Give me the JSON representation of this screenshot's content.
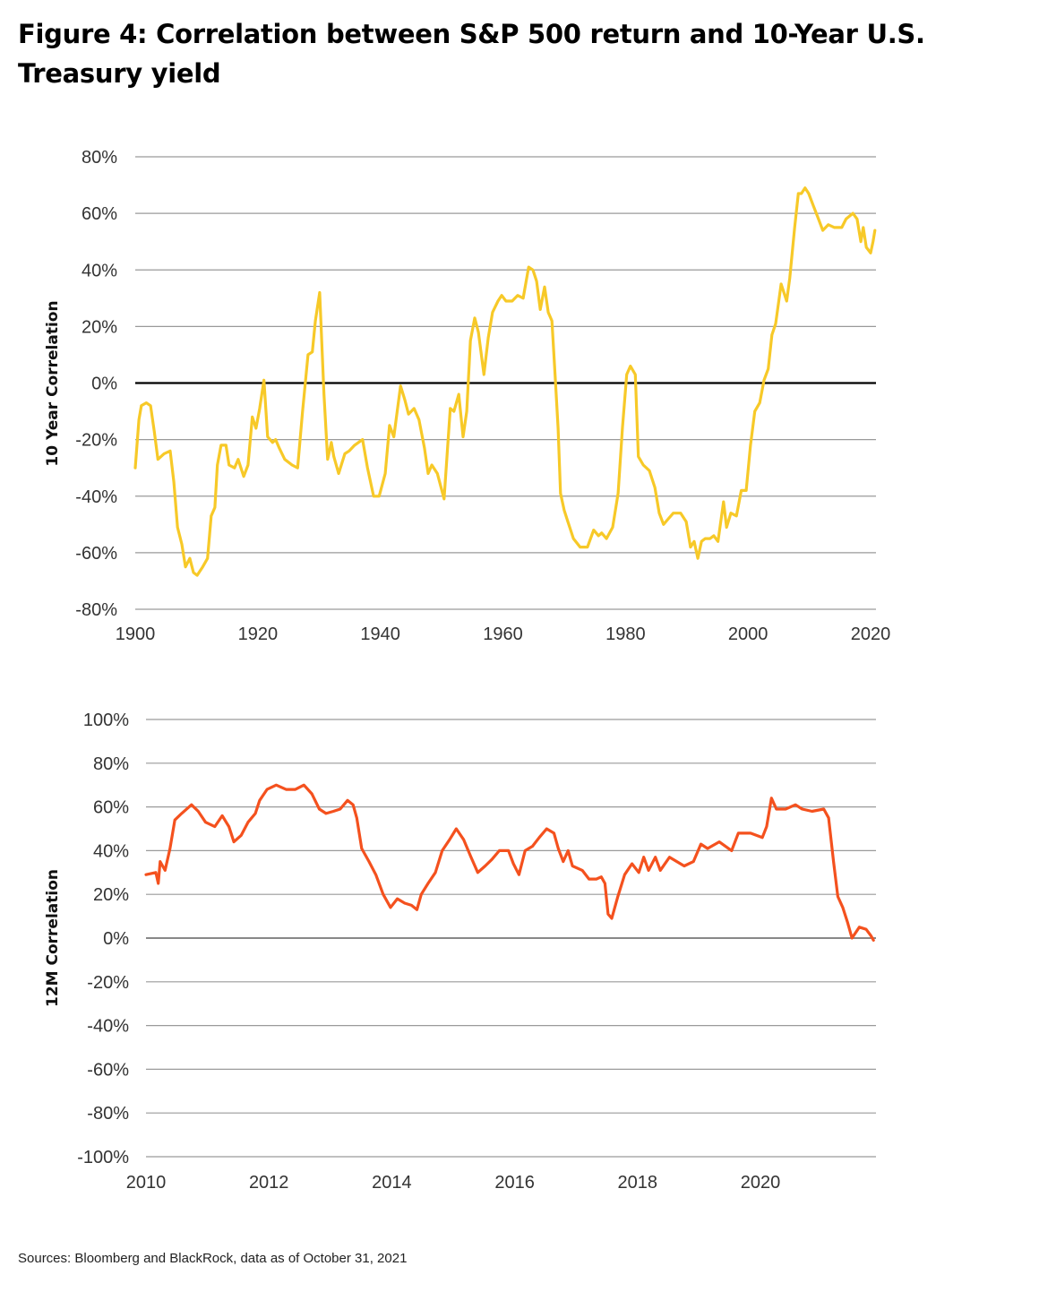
{
  "title": "Figure 4: Correlation between S&P 500 return and 10-Year U.S. Treasury yield",
  "source": "Sources: Bloomberg and BlackRock, data as of October 31, 2021",
  "colors": {
    "top_line": "#F7C928",
    "bottom_line": "#F4511E",
    "grid": "#9a9a9a"
  },
  "chart_data": [
    {
      "type": "line",
      "title": "",
      "xlabel": "",
      "ylabel": "10 Year Correlation",
      "xlim": [
        1900,
        2020
      ],
      "ylim": [
        -80,
        80
      ],
      "x_ticks": [
        1900,
        1920,
        1940,
        1960,
        1980,
        2000,
        2020
      ],
      "x_tick_labels": [
        "1900",
        "1920",
        "1940",
        "1960",
        "1980",
        "2000",
        "2020"
      ],
      "y_ticks": [
        80,
        60,
        40,
        20,
        0,
        -20,
        -40,
        -60,
        -80
      ],
      "y_tick_labels": [
        "80%",
        "60%",
        "40%",
        "20%",
        "0%",
        "-20%",
        "-40%",
        "-60%",
        "-80%"
      ],
      "grid": true,
      "series": [
        {
          "name": "10 Year Correlation",
          "x": [
            1900.0,
            1900.6,
            1901.0,
            1901.8,
            1902.5,
            1903.1,
            1903.7,
            1904.7,
            1905.7,
            1906.3,
            1906.9,
            1907.6,
            1908.2,
            1908.9,
            1909.5,
            1910.1,
            1911.0,
            1911.8,
            1912.4,
            1913.0,
            1913.4,
            1914.0,
            1914.8,
            1915.3,
            1916.2,
            1916.8,
            1917.7,
            1918.4,
            1919.1,
            1919.7,
            1920.3,
            1921.0,
            1921.6,
            1922.4,
            1922.9,
            1923.5,
            1924.4,
            1925.6,
            1926.5,
            1927.3,
            1928.2,
            1928.9,
            1929.4,
            1930.1,
            1930.8,
            1931.4,
            1932.0,
            1932.4,
            1933.2,
            1934.2,
            1934.9,
            1935.8,
            1937.1,
            1937.9,
            1938.9,
            1939.8,
            1940.8,
            1941.5,
            1942.2,
            1943.3,
            1944.0,
            1944.6,
            1945.5,
            1946.3,
            1947.2,
            1947.8,
            1948.4,
            1949.3,
            1950.4,
            1951.4,
            1952.0,
            1952.8,
            1953.5,
            1954.1,
            1954.7,
            1955.4,
            1956.0,
            1956.9,
            1957.6,
            1958.3,
            1959.2,
            1959.8,
            1960.5,
            1961.5,
            1962.4,
            1963.3,
            1964.2,
            1964.9,
            1965.5,
            1966.1,
            1966.8,
            1967.4,
            1968.0,
            1968.5,
            1969.0,
            1969.4,
            1970.0,
            1970.6,
            1971.5,
            1972.6,
            1973.8,
            1974.8,
            1975.6,
            1976.1,
            1976.9,
            1977.9,
            1978.8,
            1979.5,
            1980.2,
            1980.8,
            1981.6,
            1982.1,
            1982.9,
            1983.9,
            1984.8,
            1985.5,
            1986.2,
            1987.0,
            1987.8,
            1989.0,
            1989.9,
            1990.6,
            1991.2,
            1991.8,
            1992.4,
            1993.0,
            1993.8,
            1994.4,
            1995.1,
            1996.0,
            1996.5,
            1997.2,
            1998.1,
            1998.9,
            1999.7,
            2000.4,
            2001.1,
            2001.9,
            2002.6,
            2003.3,
            2003.9,
            2004.5,
            2005.4,
            2006.3,
            2006.8,
            2007.6,
            2008.2,
            2008.7,
            2009.3,
            2009.9,
            2010.6,
            2011.5,
            2012.2,
            2013.1,
            2014.1,
            2015.3,
            2016.0,
            2017.1,
            2017.8,
            2018.4,
            2018.8,
            2019.3,
            2020.0,
            2020.4,
            2020.7
          ],
          "y": [
            -30,
            -13,
            -8,
            -7,
            -8,
            -17,
            -27,
            -25,
            -24,
            -35,
            -51,
            -57,
            -65,
            -62,
            -67,
            -68,
            -65,
            -62,
            -47,
            -44,
            -29,
            -22,
            -22,
            -29,
            -30,
            -27,
            -33,
            -29,
            -12,
            -16,
            -9,
            1,
            -19,
            -21,
            -20,
            -23,
            -27,
            -29,
            -30,
            -10,
            10,
            11,
            22,
            32,
            -4,
            -27,
            -21,
            -26,
            -32,
            -25,
            -24,
            -22,
            -20,
            -30,
            -40,
            -40,
            -32,
            -15,
            -19,
            -1,
            -6,
            -11,
            -9,
            -13,
            -23,
            -32,
            -29,
            -32,
            -41,
            -9,
            -10,
            -4,
            -19,
            -10,
            15,
            23,
            18,
            3,
            16,
            25,
            29,
            31,
            29,
            29,
            31,
            30,
            41,
            40,
            36,
            26,
            34,
            25,
            22,
            3,
            -16,
            -39,
            -45,
            -49,
            -55,
            -58,
            -58,
            -52,
            -54,
            -53,
            -55,
            -51,
            -39,
            -16,
            3,
            6,
            3,
            -26,
            -29,
            -31,
            -37,
            -46,
            -50,
            -48,
            -46,
            -46,
            -49,
            -58,
            -56,
            -62,
            -56,
            -55,
            -55,
            -54,
            -56,
            -42,
            -51,
            -46,
            -47,
            -38,
            -38,
            -22,
            -10,
            -7,
            1,
            5,
            17,
            21,
            35,
            29,
            37,
            55,
            67,
            67,
            69,
            67,
            63,
            58,
            54,
            56,
            55,
            55,
            58,
            60,
            58,
            50,
            55,
            48,
            46,
            50,
            54
          ]
        }
      ]
    },
    {
      "type": "line",
      "title": "",
      "xlabel": "",
      "ylabel": "12M Correlation",
      "xlim": [
        2010,
        2022
      ],
      "ylim": [
        -100,
        100
      ],
      "x_ticks": [
        2010,
        2012,
        2014,
        2016,
        2018,
        2020
      ],
      "x_tick_labels": [
        "2010",
        "2012",
        "2014",
        "2016",
        "2018",
        "2020"
      ],
      "y_ticks": [
        100,
        80,
        60,
        40,
        20,
        0,
        -20,
        -40,
        -60,
        -80,
        -100
      ],
      "y_tick_labels": [
        "100%",
        "80%",
        "60%",
        "40%",
        "20%",
        "0%",
        "-20%",
        "-40%",
        "-60%",
        "-80%",
        "-100%"
      ],
      "grid": true,
      "series": [
        {
          "name": "12M Correlation",
          "x": [
            2010.0,
            2010.16,
            2010.2,
            2010.23,
            2010.31,
            2010.39,
            2010.47,
            2010.58,
            2010.74,
            2010.85,
            2010.97,
            2011.12,
            2011.24,
            2011.35,
            2011.43,
            2011.55,
            2011.66,
            2011.78,
            2011.85,
            2011.97,
            2012.12,
            2012.28,
            2012.43,
            2012.57,
            2012.7,
            2012.82,
            2012.93,
            2013.05,
            2013.16,
            2013.28,
            2013.37,
            2013.43,
            2013.51,
            2013.63,
            2013.74,
            2013.86,
            2013.98,
            2014.09,
            2014.21,
            2014.32,
            2014.41,
            2014.48,
            2014.59,
            2014.71,
            2014.82,
            2014.94,
            2015.05,
            2015.17,
            2015.29,
            2015.4,
            2015.52,
            2015.63,
            2015.75,
            2015.9,
            2015.98,
            2016.07,
            2016.17,
            2016.29,
            2016.4,
            2016.52,
            2016.64,
            2016.71,
            2016.79,
            2016.87,
            2016.94,
            2017.1,
            2017.21,
            2017.33,
            2017.41,
            2017.47,
            2017.52,
            2017.58,
            2017.68,
            2017.79,
            2017.91,
            2018.02,
            2018.1,
            2018.18,
            2018.29,
            2018.37,
            2018.52,
            2018.76,
            2018.91,
            2019.03,
            2019.14,
            2019.33,
            2019.53,
            2019.64,
            2019.84,
            2020.03,
            2020.1,
            2020.18,
            2020.26,
            2020.41,
            2020.57,
            2020.68,
            2020.84,
            2021.03,
            2021.11,
            2021.19,
            2021.26,
            2021.34,
            2021.42,
            2021.49,
            2021.61,
            2021.72,
            2021.8,
            2021.84
          ],
          "y": [
            29,
            30,
            25,
            35,
            31,
            41,
            54,
            57,
            61,
            58,
            53,
            51,
            56,
            51,
            44,
            47,
            53,
            57,
            63,
            68,
            70,
            68,
            68,
            70,
            66,
            59,
            57,
            58,
            59,
            63,
            61,
            55,
            41,
            35,
            29,
            20,
            14,
            18,
            16,
            15,
            13,
            20,
            25,
            30,
            40,
            45,
            50,
            45,
            37,
            30,
            33,
            36,
            40,
            40,
            34,
            29,
            40,
            42,
            46,
            50,
            48,
            41,
            35,
            40,
            33,
            31,
            27,
            27,
            28,
            25,
            11,
            9,
            19,
            29,
            34,
            30,
            37,
            31,
            37,
            31,
            37,
            33,
            35,
            43,
            41,
            44,
            40,
            48,
            48,
            46,
            51,
            64,
            59,
            59,
            61,
            59,
            58,
            59,
            55,
            35,
            19,
            14,
            7,
            0,
            5,
            4,
            1,
            -1
          ]
        }
      ]
    }
  ]
}
